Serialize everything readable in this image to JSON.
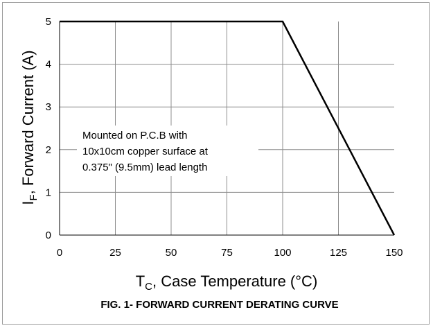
{
  "chart_data": {
    "type": "line",
    "title": "FIG. 1- FORWARD CURRENT DERATING CURVE",
    "xlabel": {
      "main": "T",
      "sub": "C",
      "rest": ", Case Temperature  (°C)"
    },
    "ylabel": {
      "main": "I",
      "sub": "F",
      "rest": ", Forward Current (A)"
    },
    "xlim": [
      0,
      150
    ],
    "ylim": [
      0,
      5
    ],
    "x_ticks": [
      0,
      25,
      50,
      75,
      100,
      125,
      150
    ],
    "y_ticks": [
      0,
      1,
      2,
      3,
      4,
      5
    ],
    "grid": true,
    "series": [
      {
        "x": [
          0,
          100,
          150
        ],
        "y": [
          5,
          5,
          0
        ],
        "color": "#000000"
      }
    ],
    "annotation": [
      "Mounted on  P.C.B with",
      "10x10cm copper surface at",
      "0.375\" (9.5mm) lead length"
    ]
  }
}
